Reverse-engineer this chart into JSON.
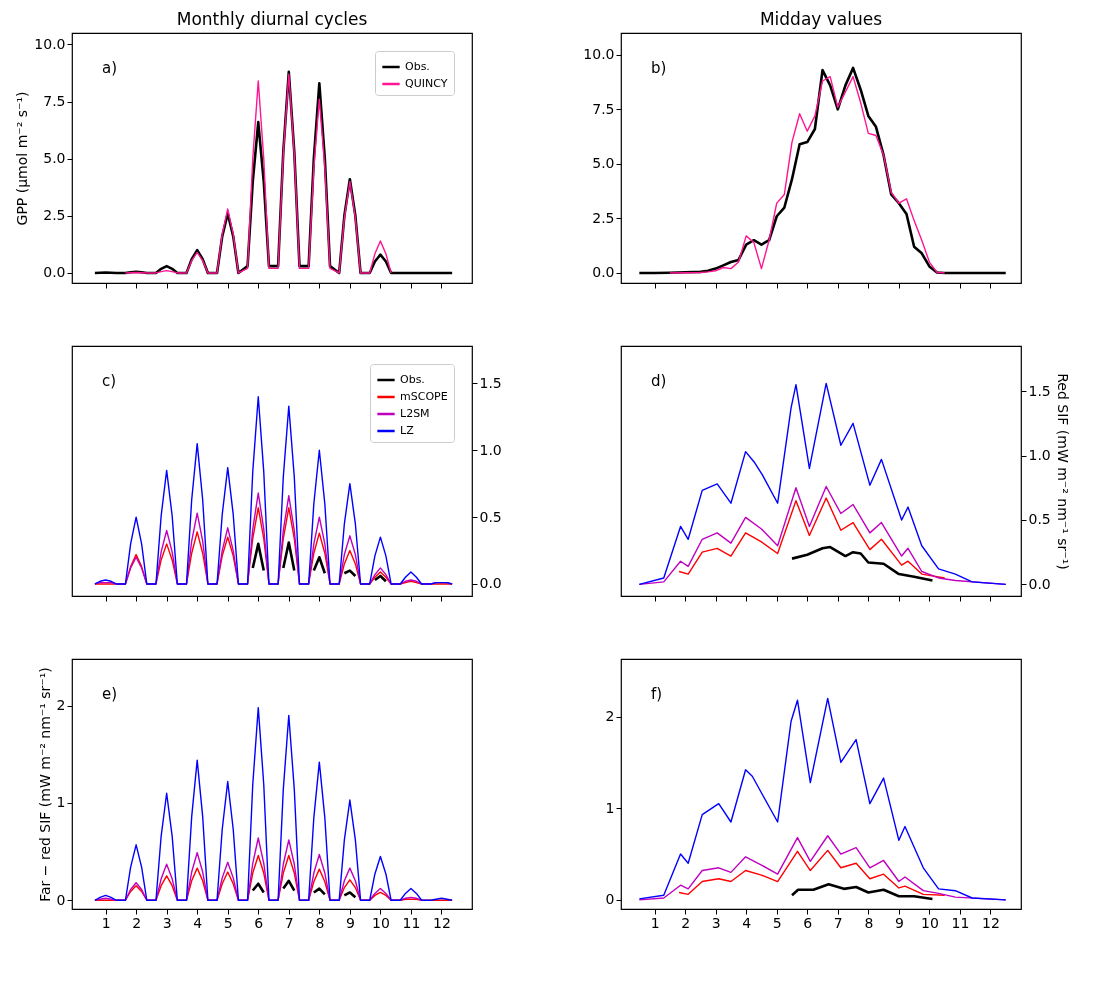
{
  "chart_data": [
    {
      "type": "line",
      "title": "Monthly diurnal cycles",
      "ylabel": "GPP (μmol m⁻² s⁻¹)",
      "annotations": [
        "a)"
      ],
      "legend": "top right",
      "grid": false,
      "tick_labels": "y",
      "xlim": [
        -0.1,
        13
      ],
      "xticks": [
        1,
        2,
        3,
        4,
        5,
        6,
        7,
        8,
        9,
        10,
        11,
        12
      ],
      "ylim": [
        -0.44,
        10.5
      ],
      "yticks": [
        {
          "value": 0,
          "label": "0.0"
        },
        {
          "value": 2.5,
          "label": "2.5"
        },
        {
          "value": 5,
          "label": "5.0"
        },
        {
          "value": 7.5,
          "label": "7.5"
        },
        {
          "value": 10,
          "label": "10.0"
        }
      ],
      "x": [
        0.65,
        0.82,
        1,
        1.18,
        1.35,
        1.65,
        1.82,
        2,
        2.18,
        2.35,
        2.65,
        2.82,
        3,
        3.18,
        3.35,
        3.65,
        3.82,
        4,
        4.18,
        4.35,
        4.65,
        4.82,
        5,
        5.18,
        5.35,
        5.65,
        5.82,
        6,
        6.18,
        6.35,
        6.65,
        6.82,
        7,
        7.18,
        7.35,
        7.65,
        7.82,
        8,
        8.18,
        8.35,
        8.65,
        8.82,
        9,
        9.18,
        9.35,
        9.65,
        9.82,
        10,
        10.18,
        10.35,
        10.65,
        10.82,
        11,
        11.18,
        11.35,
        11.65,
        11.82,
        12,
        12.18,
        12.35
      ],
      "series": [
        {
          "name": "Obs.",
          "color": "#000000",
          "values": [
            0,
            0.01,
            0.02,
            0.01,
            0,
            0,
            0.03,
            0.05,
            0.03,
            0,
            0,
            0.18,
            0.3,
            0.18,
            0,
            0,
            0.6,
            1.0,
            0.6,
            0,
            0,
            1.6,
            2.6,
            1.6,
            0,
            0.3,
            4.0,
            6.6,
            4.0,
            0.3,
            0.3,
            5.3,
            8.8,
            5.3,
            0.3,
            0.3,
            5.0,
            8.3,
            5.0,
            0.3,
            0,
            2.5,
            4.1,
            2.5,
            0,
            0,
            0.5,
            0.8,
            0.5,
            0,
            0,
            0,
            0,
            0,
            0,
            0,
            0,
            0,
            0,
            0
          ]
        },
        {
          "name": "QUINCY",
          "color": "#ff1493",
          "values": [
            null,
            null,
            null,
            null,
            null,
            0,
            0.01,
            0.02,
            0.01,
            0,
            0,
            0.06,
            0.1,
            0.06,
            0,
            0,
            0.54,
            0.9,
            0.54,
            0,
            0,
            1.7,
            2.8,
            1.7,
            0,
            0.2,
            5.0,
            8.4,
            5.0,
            0.2,
            0.2,
            5.2,
            8.7,
            5.2,
            0.2,
            0.2,
            4.6,
            7.6,
            4.6,
            0.2,
            0,
            2.4,
            4.0,
            2.4,
            0,
            0,
            0.84,
            1.4,
            0.84,
            0,
            null,
            null,
            null,
            null,
            null,
            null,
            null,
            null,
            null,
            null
          ]
        }
      ]
    },
    {
      "type": "line",
      "title": "Midday values",
      "annotations": [
        "b)"
      ],
      "legend": false,
      "grid": false,
      "tick_labels": "y",
      "xlim": [
        -0.1,
        13
      ],
      "xticks": [
        1,
        2,
        3,
        4,
        5,
        6,
        7,
        8,
        9,
        10,
        11,
        12
      ],
      "ylim": [
        -0.46,
        11.0
      ],
      "yticks": [
        {
          "value": 0,
          "label": "0.0"
        },
        {
          "value": 2.5,
          "label": "2.5"
        },
        {
          "value": 5,
          "label": "5.0"
        },
        {
          "value": 7.5,
          "label": "7.5"
        },
        {
          "value": 10,
          "label": "10.0"
        }
      ],
      "x": [
        0.5,
        1,
        1.5,
        2,
        2.5,
        2.75,
        3,
        3.25,
        3.5,
        3.75,
        4,
        4.25,
        4.5,
        4.75,
        5,
        5.25,
        5.5,
        5.75,
        6,
        6.25,
        6.5,
        6.75,
        7,
        7.25,
        7.5,
        7.75,
        8,
        8.25,
        8.5,
        8.75,
        9,
        9.25,
        9.5,
        9.75,
        10,
        10.25,
        10.5,
        11,
        11.5,
        12,
        12.5
      ],
      "series": [
        {
          "color": "#000000",
          "values": [
            0,
            0,
            0.01,
            0.03,
            0.05,
            0.1,
            0.2,
            0.35,
            0.5,
            0.6,
            1.3,
            1.5,
            1.3,
            1.5,
            2.6,
            3.0,
            4.3,
            5.9,
            6.0,
            6.6,
            9.3,
            8.6,
            7.5,
            8.6,
            9.4,
            8.4,
            7.2,
            6.7,
            5.4,
            3.6,
            3.2,
            2.7,
            1.2,
            0.9,
            0.3,
            0.02,
            0,
            0,
            0,
            0,
            0
          ]
        },
        {
          "color": "#ff1493",
          "values": [
            null,
            null,
            0,
            0.01,
            0.02,
            0.05,
            0.1,
            0.25,
            0.2,
            0.5,
            1.7,
            1.4,
            0.2,
            1.5,
            3.2,
            3.6,
            6.0,
            7.3,
            6.5,
            7.2,
            8.8,
            9.0,
            7.6,
            8.3,
            9.0,
            7.8,
            6.4,
            6.3,
            5.4,
            3.7,
            3.2,
            3.4,
            2.4,
            1.5,
            0.5,
            0.03,
            0,
            null,
            null,
            null,
            null
          ]
        }
      ]
    },
    {
      "type": "line",
      "annotations": [
        "c)"
      ],
      "legend": "top right",
      "grid": false,
      "tick_labels": "y",
      "xlim": [
        -0.1,
        13
      ],
      "xticks": [
        1,
        2,
        3,
        4,
        5,
        6,
        7,
        8,
        9,
        10,
        11,
        12
      ],
      "y2lim": [
        -0.09,
        1.78
      ],
      "y2ticks": [
        {
          "value": 0,
          "label": "0.0"
        },
        {
          "value": 0.5,
          "label": "0.5"
        },
        {
          "value": 1,
          "label": "1.0"
        },
        {
          "value": 1.5,
          "label": "1.5"
        }
      ],
      "x": [
        0.65,
        0.82,
        1,
        1.18,
        1.35,
        1.65,
        1.82,
        2,
        2.18,
        2.35,
        2.65,
        2.82,
        3,
        3.18,
        3.35,
        3.65,
        3.82,
        4,
        4.18,
        4.35,
        4.65,
        4.82,
        5,
        5.18,
        5.35,
        5.65,
        5.82,
        6,
        6.18,
        6.35,
        6.65,
        6.82,
        7,
        7.18,
        7.35,
        7.65,
        7.82,
        8,
        8.18,
        8.35,
        8.65,
        8.82,
        9,
        9.18,
        9.35,
        9.65,
        9.82,
        10,
        10.18,
        10.35,
        10.65,
        10.82,
        11,
        11.18,
        11.35,
        11.65,
        11.82,
        12,
        12.18,
        12.35
      ],
      "series": [
        {
          "name": "Obs.",
          "color": "#000000",
          "axis": "y2",
          "values": [
            null,
            null,
            null,
            null,
            null,
            null,
            null,
            null,
            null,
            null,
            null,
            null,
            null,
            null,
            null,
            null,
            null,
            null,
            null,
            null,
            null,
            null,
            null,
            null,
            null,
            null,
            0.12,
            0.3,
            0.1,
            null,
            null,
            0.12,
            0.31,
            0.1,
            null,
            null,
            0.1,
            0.2,
            0.08,
            null,
            null,
            0.08,
            0.1,
            0.06,
            null,
            null,
            0.03,
            0.06,
            0.02,
            null,
            null,
            null,
            null,
            null,
            null,
            null,
            null,
            null,
            null,
            null
          ]
        },
        {
          "name": "mSCOPE",
          "color": "#ff0000",
          "axis": "y2",
          "values": [
            0,
            0,
            0,
            0,
            0,
            0,
            0.13,
            0.22,
            0.13,
            0,
            0,
            0.18,
            0.3,
            0.18,
            0,
            0,
            0.23,
            0.39,
            0.23,
            0,
            0,
            0.21,
            0.35,
            0.21,
            0,
            0,
            0.34,
            0.57,
            0.34,
            0,
            0,
            0.34,
            0.57,
            0.34,
            0,
            0,
            0.23,
            0.38,
            0.23,
            0,
            0,
            0.15,
            0.25,
            0.15,
            0,
            0,
            0.05,
            0.09,
            0.05,
            0,
            0,
            0.01,
            0.02,
            0.01,
            0,
            0,
            0,
            0,
            0,
            0
          ]
        },
        {
          "name": "L2SM",
          "color": "#bf00bf",
          "axis": "y2",
          "values": [
            0,
            0.01,
            0.01,
            0.01,
            0,
            0,
            0.12,
            0.2,
            0.12,
            0,
            0,
            0.24,
            0.4,
            0.24,
            0,
            0,
            0.32,
            0.53,
            0.32,
            0,
            0,
            0.25,
            0.42,
            0.25,
            0,
            0,
            0.41,
            0.68,
            0.41,
            0,
            0,
            0.4,
            0.66,
            0.4,
            0,
            0,
            0.3,
            0.5,
            0.3,
            0,
            0,
            0.22,
            0.36,
            0.22,
            0,
            0,
            0.07,
            0.12,
            0.07,
            0,
            0,
            0.02,
            0.03,
            0.02,
            0,
            0,
            0.01,
            0.01,
            0.01,
            0
          ]
        },
        {
          "name": "LZ",
          "color": "#0000ff",
          "axis": "y2",
          "values": [
            0,
            0.02,
            0.03,
            0.02,
            0,
            0,
            0.3,
            0.5,
            0.3,
            0,
            0,
            0.51,
            0.85,
            0.51,
            0,
            0,
            0.63,
            1.05,
            0.63,
            0,
            0,
            0.52,
            0.87,
            0.52,
            0,
            0,
            0.84,
            1.4,
            0.84,
            0,
            0,
            0.8,
            1.33,
            0.8,
            0,
            0,
            0.6,
            1.0,
            0.6,
            0,
            0,
            0.45,
            0.75,
            0.45,
            0,
            0,
            0.21,
            0.35,
            0.21,
            0,
            0,
            0.05,
            0.09,
            0.05,
            0,
            0,
            0.01,
            0.01,
            0.01,
            0
          ]
        }
      ]
    },
    {
      "type": "line",
      "annotations": [
        "d)"
      ],
      "legend": false,
      "grid": false,
      "tick_labels": "y",
      "y2label": "Red SIF (mW m⁻² nm⁻¹ sr⁻¹)",
      "xlim": [
        -0.1,
        13
      ],
      "xticks": [
        1,
        2,
        3,
        4,
        5,
        6,
        7,
        8,
        9,
        10,
        11,
        12
      ],
      "y2lim": [
        -0.09,
        1.85
      ],
      "y2ticks": [
        {
          "value": 0,
          "label": "0.0"
        },
        {
          "value": 0.5,
          "label": "0.5"
        },
        {
          "value": 1,
          "label": "1.0"
        },
        {
          "value": 1.5,
          "label": "1.5"
        }
      ],
      "series": [
        {
          "color": "#000000",
          "axis": "y2",
          "x": [
            5.5,
            6,
            6.5,
            6.75,
            7.25,
            7.5,
            7.75,
            8,
            8.5,
            9,
            9.5,
            10.1
          ],
          "values": [
            0.2,
            0.23,
            0.28,
            0.29,
            0.22,
            0.25,
            0.24,
            0.17,
            0.16,
            0.08,
            0.06,
            0.03
          ]
        },
        {
          "color": "#ff0000",
          "axis": "y2",
          "x": [
            1.8,
            2.1,
            2.56,
            3.05,
            3.5,
            3.98,
            4.5,
            5.03,
            5.63,
            6.07,
            6.62,
            7.1,
            7.5,
            8.05,
            8.43,
            9.09,
            9.3,
            9.75,
            10.5
          ],
          "values": [
            0.1,
            0.08,
            0.25,
            0.28,
            0.22,
            0.4,
            0.33,
            0.24,
            0.65,
            0.38,
            0.67,
            0.42,
            0.48,
            0.27,
            0.35,
            0.15,
            0.18,
            0.08,
            0.05
          ]
        },
        {
          "color": "#bf00bf",
          "axis": "y2",
          "x": [
            0.5,
            1.3,
            1.85,
            2.1,
            2.56,
            3.05,
            3.5,
            3.98,
            4.5,
            5.03,
            5.63,
            6.07,
            6.62,
            7.1,
            7.5,
            8.05,
            8.43,
            9.09,
            9.3,
            9.75,
            10.3,
            10.85,
            12.5
          ],
          "values": [
            0,
            0.02,
            0.18,
            0.14,
            0.35,
            0.4,
            0.32,
            0.52,
            0.43,
            0.3,
            0.75,
            0.45,
            0.76,
            0.55,
            0.62,
            0.4,
            0.48,
            0.22,
            0.28,
            0.1,
            0.05,
            0.03,
            0
          ]
        },
        {
          "color": "#0000ff",
          "axis": "y2",
          "x": [
            0.5,
            1.3,
            1.85,
            2.1,
            2.56,
            3.05,
            3.5,
            3.98,
            4.26,
            4.53,
            5.03,
            5.47,
            5.63,
            6.07,
            6.62,
            7.1,
            7.5,
            8.05,
            8.43,
            9.09,
            9.3,
            9.75,
            10.3,
            10.85,
            11.4,
            12.5
          ],
          "values": [
            0,
            0.05,
            0.45,
            0.35,
            0.73,
            0.78,
            0.63,
            1.03,
            0.95,
            0.85,
            0.63,
            1.37,
            1.55,
            0.9,
            1.56,
            1.08,
            1.25,
            0.77,
            0.97,
            0.5,
            0.6,
            0.3,
            0.12,
            0.08,
            0.02,
            0
          ]
        }
      ]
    },
    {
      "type": "line",
      "annotations": [
        "e)"
      ],
      "legend": false,
      "grid": false,
      "ylabel": "Far − red SIF (mW m⁻² nm⁻¹ sr⁻¹)",
      "xlim": [
        -0.1,
        13
      ],
      "xticks": [
        1,
        2,
        3,
        4,
        5,
        6,
        7,
        8,
        9,
        10,
        11,
        12
      ],
      "ylim": [
        -0.09,
        2.48
      ],
      "yticks": [
        0,
        1,
        2
      ],
      "x": [
        0.65,
        0.82,
        1,
        1.18,
        1.35,
        1.65,
        1.82,
        2,
        2.18,
        2.35,
        2.65,
        2.82,
        3,
        3.18,
        3.35,
        3.65,
        3.82,
        4,
        4.18,
        4.35,
        4.65,
        4.82,
        5,
        5.18,
        5.35,
        5.65,
        5.82,
        6,
        6.18,
        6.35,
        6.65,
        6.82,
        7,
        7.18,
        7.35,
        7.65,
        7.82,
        8,
        8.18,
        8.35,
        8.65,
        8.82,
        9,
        9.18,
        9.35,
        9.65,
        9.82,
        10,
        10.18,
        10.35,
        10.65,
        10.82,
        11,
        11.18,
        11.35,
        11.65,
        11.82,
        12,
        12.18,
        12.35
      ],
      "series": [
        {
          "color": "#000000",
          "values": [
            null,
            null,
            null,
            null,
            null,
            null,
            null,
            null,
            null,
            null,
            null,
            null,
            null,
            null,
            null,
            null,
            null,
            null,
            null,
            null,
            null,
            null,
            null,
            null,
            null,
            null,
            0.1,
            0.17,
            0.08,
            null,
            null,
            0.12,
            0.2,
            0.1,
            null,
            null,
            0.08,
            0.12,
            0.06,
            null,
            null,
            0.05,
            0.08,
            0.03,
            null,
            null,
            null,
            null,
            null,
            null,
            null,
            null,
            null,
            null,
            null,
            null,
            null,
            null,
            null,
            null
          ]
        },
        {
          "color": "#ff0000",
          "values": [
            0,
            0,
            0,
            0,
            0,
            0,
            0.09,
            0.15,
            0.09,
            0,
            0,
            0.15,
            0.25,
            0.15,
            0,
            0,
            0.2,
            0.33,
            0.2,
            0,
            0,
            0.17,
            0.29,
            0.17,
            0,
            0,
            0.28,
            0.46,
            0.28,
            0,
            0,
            0.28,
            0.46,
            0.28,
            0,
            0,
            0.19,
            0.32,
            0.19,
            0,
            0,
            0.13,
            0.21,
            0.13,
            0,
            0,
            0.05,
            0.08,
            0.05,
            0,
            0,
            0.01,
            0.01,
            0.01,
            0,
            0,
            0,
            0,
            0,
            0
          ]
        },
        {
          "color": "#bf00bf",
          "values": [
            0,
            0.01,
            0.02,
            0.01,
            0,
            0,
            0.11,
            0.18,
            0.11,
            0,
            0,
            0.22,
            0.37,
            0.22,
            0,
            0,
            0.29,
            0.49,
            0.29,
            0,
            0,
            0.23,
            0.39,
            0.23,
            0,
            0,
            0.38,
            0.64,
            0.38,
            0,
            0,
            0.37,
            0.62,
            0.37,
            0,
            0,
            0.28,
            0.47,
            0.28,
            0,
            0,
            0.2,
            0.33,
            0.2,
            0,
            0,
            0.07,
            0.12,
            0.07,
            0,
            0,
            0.02,
            0.03,
            0.02,
            0,
            null,
            null,
            null,
            null,
            null
          ]
        },
        {
          "color": "#0000ff",
          "values": [
            0,
            0.03,
            0.05,
            0.03,
            0,
            0,
            0.34,
            0.57,
            0.34,
            0,
            0,
            0.66,
            1.1,
            0.66,
            0,
            0,
            0.86,
            1.44,
            0.86,
            0,
            0,
            0.73,
            1.22,
            0.73,
            0,
            0,
            1.19,
            1.98,
            1.19,
            0,
            0,
            1.14,
            1.9,
            1.14,
            0,
            0,
            0.85,
            1.42,
            0.85,
            0,
            0,
            0.62,
            1.03,
            0.62,
            0,
            0,
            0.27,
            0.45,
            0.27,
            0,
            0,
            0.07,
            0.12,
            0.07,
            0,
            0,
            0.01,
            0.02,
            0.01,
            0
          ]
        }
      ]
    },
    {
      "type": "line",
      "annotations": [
        "f)"
      ],
      "legend": false,
      "grid": false,
      "xlim": [
        -0.1,
        13
      ],
      "xticks": [
        1,
        2,
        3,
        4,
        5,
        6,
        7,
        8,
        9,
        10,
        11,
        12
      ],
      "ylim": [
        -0.1,
        2.63
      ],
      "yticks": [
        0,
        1,
        2
      ],
      "series": [
        {
          "color": "#000000",
          "x": [
            5.5,
            5.7,
            6.2,
            6.7,
            7.2,
            7.6,
            8,
            8.5,
            9,
            9.5,
            10.1
          ],
          "values": [
            0.05,
            0.11,
            0.11,
            0.17,
            0.12,
            0.14,
            0.08,
            0.11,
            0.04,
            0.04,
            0.01
          ]
        },
        {
          "color": "#ff0000",
          "x": [
            1.8,
            2.1,
            2.56,
            3.1,
            3.5,
            3.98,
            4.5,
            5.03,
            5.68,
            6.1,
            6.67,
            7.1,
            7.6,
            8.05,
            8.5,
            9.0,
            9.2,
            9.8,
            10.5
          ],
          "values": [
            0.08,
            0.06,
            0.2,
            0.23,
            0.2,
            0.32,
            0.27,
            0.2,
            0.53,
            0.32,
            0.54,
            0.35,
            0.4,
            0.23,
            0.28,
            0.13,
            0.15,
            0.06,
            0.05
          ]
        },
        {
          "color": "#bf00bf",
          "x": [
            0.5,
            1.3,
            1.85,
            2.1,
            2.56,
            3.1,
            3.5,
            3.98,
            4.5,
            5.03,
            5.68,
            6.1,
            6.67,
            7.1,
            7.6,
            8.05,
            8.5,
            9.0,
            9.2,
            9.8,
            10.3,
            10.85,
            12.5
          ],
          "values": [
            0,
            0.02,
            0.16,
            0.12,
            0.32,
            0.35,
            0.3,
            0.47,
            0.38,
            0.28,
            0.68,
            0.42,
            0.7,
            0.5,
            0.57,
            0.35,
            0.43,
            0.2,
            0.25,
            0.1,
            0.07,
            0.03,
            0
          ]
        },
        {
          "color": "#0000ff",
          "x": [
            0.5,
            1.3,
            1.85,
            2.1,
            2.56,
            3.1,
            3.5,
            3.98,
            4.2,
            4.53,
            5.03,
            5.47,
            5.68,
            6.1,
            6.67,
            7.1,
            7.6,
            8.05,
            8.5,
            9.0,
            9.2,
            9.8,
            10.3,
            10.85,
            11.4,
            12.5
          ],
          "values": [
            0.01,
            0.05,
            0.5,
            0.4,
            0.93,
            1.05,
            0.85,
            1.42,
            1.35,
            1.15,
            0.85,
            1.95,
            2.18,
            1.28,
            2.2,
            1.5,
            1.75,
            1.05,
            1.33,
            0.65,
            0.8,
            0.35,
            0.12,
            0.1,
            0.02,
            0
          ]
        }
      ]
    }
  ]
}
